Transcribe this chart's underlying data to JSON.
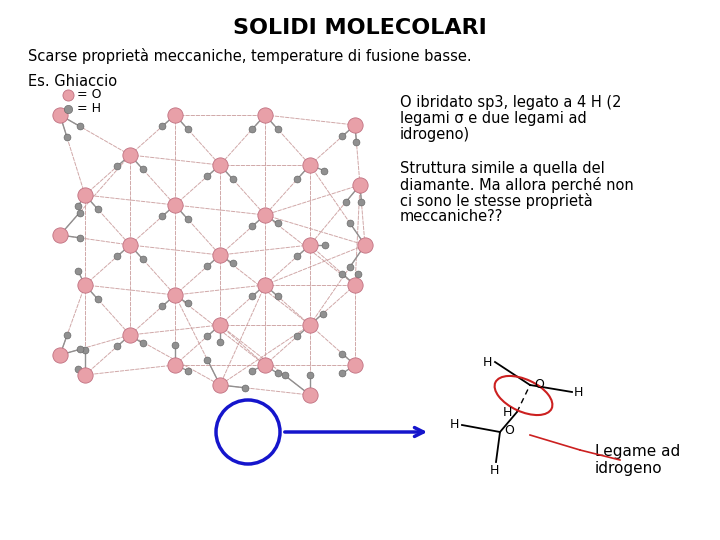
{
  "title": "SOLIDI MOLECOLARI",
  "subtitle": "Scarse proprietà meccaniche, temperature di fusione basse.",
  "label_es": "Es. Ghiaccio",
  "legend_o": "= O",
  "legend_h": "= H",
  "text1_line1": "O ibridato sp3, legato a 4 H (2",
  "text1_line2": "legami σ e due legami ad",
  "text1_line3": "idrogeno)",
  "text2_line1": "Struttura simile a quella del",
  "text2_line2": "diamante. Ma allora perché non",
  "text2_line3": "ci sono le stesse proprietà",
  "text2_line4": "meccaniche??",
  "text3": "Legame ad\nidrogeno",
  "bg_color": "#ffffff",
  "title_fontsize": 16,
  "body_fontsize": 10.5,
  "legend_fontsize": 9,
  "label_fontsize": 11,
  "o_color": "#E8A0A8",
  "o_edge_color": "#C07080",
  "h_color": "#909090",
  "h_edge_color": "#606060",
  "bond_color": "#909090",
  "hbond_color": "#C89898",
  "blue_color": "#1515CC",
  "red_color": "#CC2020"
}
